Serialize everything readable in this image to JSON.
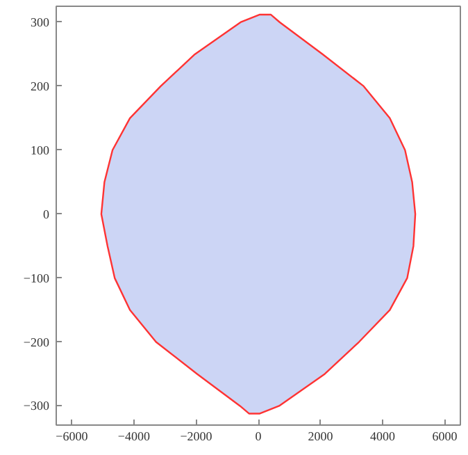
{
  "chart_data": {
    "type": "area",
    "xlim": [
      -6500,
      6500
    ],
    "ylim": [
      -330,
      325
    ],
    "xticks": [
      -6000,
      -4000,
      -2000,
      0,
      2000,
      4000,
      6000
    ],
    "yticks": [
      -300,
      -200,
      -100,
      0,
      100,
      200,
      300
    ],
    "grid": false,
    "series": [
      {
        "color": "#ccd5f5",
        "x": [
          50,
          400,
          690,
          2070,
          3390,
          4230,
          4720,
          4950,
          5050,
          4990,
          4790,
          4230,
          3240,
          2140,
          670,
          50,
          -300,
          -590,
          -1970,
          -3290,
          -4130,
          -4620,
          -4850,
          -5050,
          -4950,
          -4690,
          -4130,
          -3140,
          -2040,
          -570,
          50
        ],
        "values": [
          312,
          312,
          300,
          250,
          200,
          150,
          100,
          50,
          0,
          -50,
          -100,
          -150,
          -200,
          -250,
          -300,
          -312,
          -312,
          -300,
          -250,
          -200,
          -150,
          -100,
          -50,
          0,
          50,
          100,
          150,
          200,
          250,
          300,
          312
        ]
      }
    ]
  }
}
